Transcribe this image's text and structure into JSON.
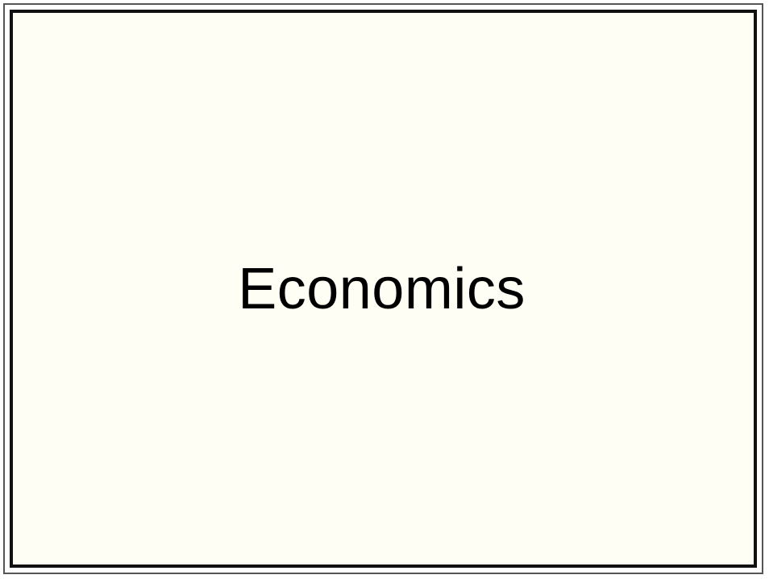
{
  "slide": {
    "title": "Economics"
  },
  "colors": {
    "background": "#fffef4",
    "border": "#111111",
    "text": "#000000"
  }
}
